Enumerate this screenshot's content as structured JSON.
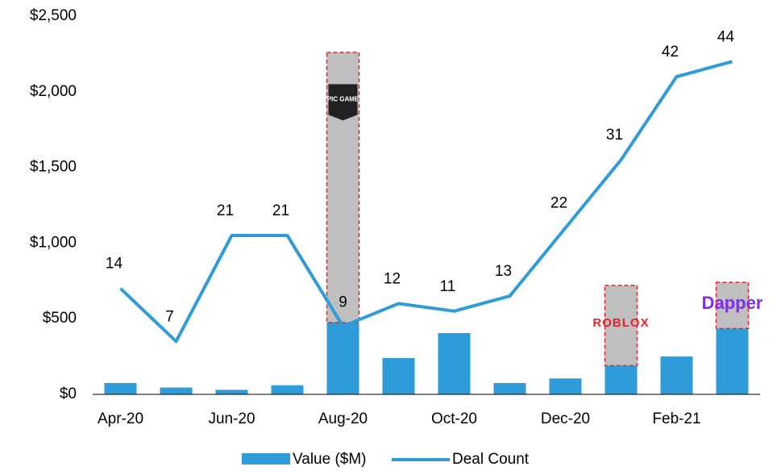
{
  "chart_data": {
    "type": "bar",
    "categories": [
      "Apr-20",
      null,
      "Jun-20",
      null,
      "Aug-20",
      null,
      "Oct-20",
      null,
      "Dec-20",
      null,
      "Feb-21",
      null
    ],
    "series": [
      {
        "name": "Value ($M)",
        "color": "#2f9bd8",
        "values": [
          75,
          45,
          30,
          60,
          475,
          240,
          405,
          75,
          105,
          190,
          250,
          435
        ]
      },
      {
        "color": "#bfbfbf",
        "values": [
          null,
          null,
          null,
          null,
          1785,
          null,
          null,
          null,
          null,
          530,
          null,
          305
        ],
        "labels": [
          null,
          null,
          null,
          null,
          "EPIC GAMES",
          null,
          null,
          null,
          null,
          "ROBLOX",
          null,
          "Dapper"
        ],
        "label_colors": [
          null,
          null,
          null,
          null,
          "#ffffff",
          null,
          null,
          null,
          null,
          "#e3262d",
          null,
          "#7b2fe0"
        ],
        "border_color": "#e3262d"
      },
      {
        "name": "Deal Count",
        "type": "line",
        "axis": "y2",
        "color": "#2f9bd8",
        "values": [
          14,
          7,
          21,
          21,
          9,
          12,
          11,
          13,
          22,
          31,
          42,
          44
        ]
      }
    ],
    "ylim": [
      0,
      2500
    ],
    "yticks": [
      {
        "value": 0,
        "label": "$0"
      },
      {
        "value": 500,
        "label": "$500"
      },
      {
        "value": 1000,
        "label": "$1,000"
      },
      {
        "value": 1500,
        "label": "$1,500"
      },
      {
        "value": 2000,
        "label": "$2,000"
      },
      {
        "value": 2500,
        "label": "$2,500"
      }
    ],
    "y2lim": [
      0,
      50
    ],
    "grid": false,
    "legend": "bottom"
  }
}
